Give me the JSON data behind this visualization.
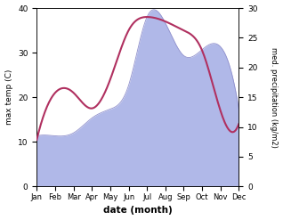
{
  "months": [
    "Jan",
    "Feb",
    "Mar",
    "Apr",
    "May",
    "Jun",
    "Jul",
    "Aug",
    "Sep",
    "Oct",
    "Nov",
    "Dec"
  ],
  "temp_max": [
    10.5,
    21.0,
    21.0,
    17.5,
    24.0,
    35.0,
    38.0,
    37.0,
    35.0,
    30.5,
    17.0,
    14.0
  ],
  "precipitation": [
    8.5,
    8.5,
    9.0,
    11.5,
    13.0,
    17.0,
    28.5,
    27.5,
    22.0,
    23.0,
    23.5,
    13.0
  ],
  "temp_color": "#b03060",
  "precip_color_fill": "#b0b8e8",
  "precip_color_edge": "#9090cc",
  "temp_ylim": [
    0,
    40
  ],
  "precip_ylim": [
    0,
    30
  ],
  "xlabel": "date (month)",
  "ylabel_left": "max temp (C)",
  "ylabel_right": "med. precipitation (kg/m2)",
  "bg_color": "#ffffff",
  "grid_color": "#e8e8e8"
}
